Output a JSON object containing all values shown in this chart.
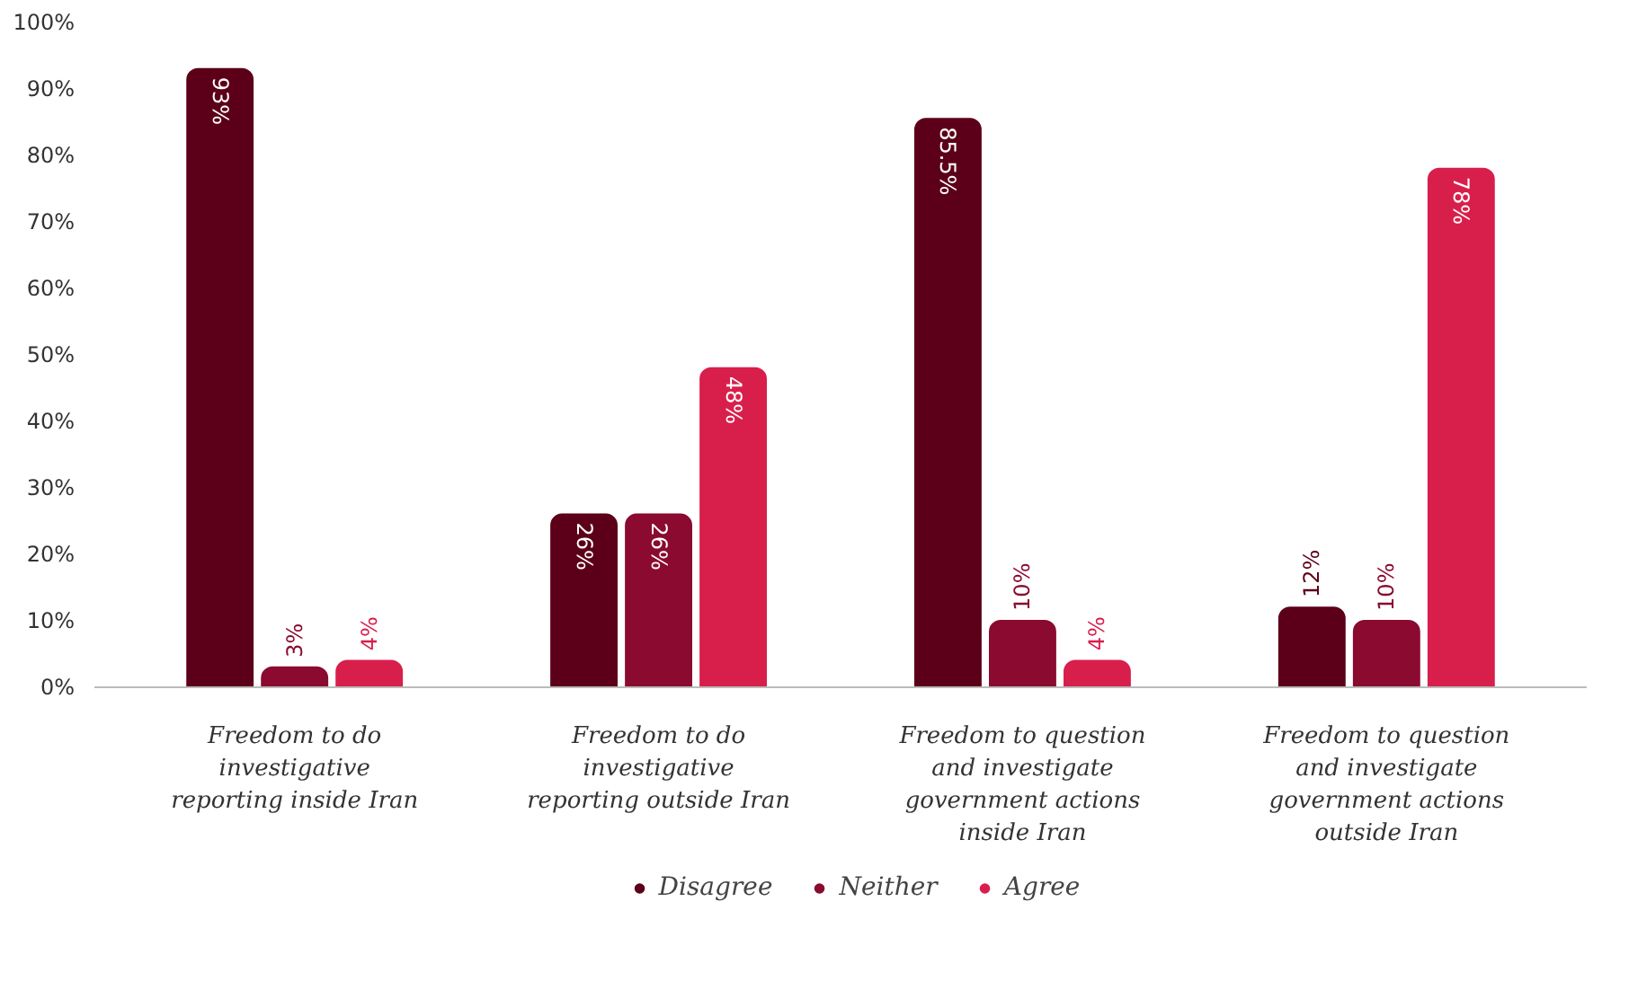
{
  "chart_data": {
    "type": "bar",
    "categories": [
      "Freedom to do investigative reporting inside Iran",
      "Freedom to do investigative reporting outside Iran",
      "Freedom to question and investigate government actions inside Iran",
      "Freedom to question and investigate government actions outside Iran"
    ],
    "series": [
      {
        "name": "Disagree",
        "color": "#5c0019",
        "values": [
          93,
          26,
          85.5,
          12
        ],
        "value_labels": [
          "93%",
          "26%",
          "85.5%",
          "12%"
        ]
      },
      {
        "name": "Neither",
        "color": "#8a0a30",
        "values": [
          3,
          26,
          10,
          10
        ],
        "value_labels": [
          "3%",
          "26%",
          "10%",
          "10%"
        ]
      },
      {
        "name": "Agree",
        "color": "#d81f4c",
        "values": [
          4,
          48,
          4,
          78
        ],
        "value_labels": [
          "4%",
          "48%",
          "4%",
          "78%"
        ]
      }
    ],
    "ylim": [
      0,
      100
    ],
    "yticks": [
      {
        "value": 0,
        "label": "0%"
      },
      {
        "value": 10,
        "label": "10%"
      },
      {
        "value": 20,
        "label": "20%"
      },
      {
        "value": 30,
        "label": "30%"
      },
      {
        "value": 40,
        "label": "40%"
      },
      {
        "value": 50,
        "label": "50%"
      },
      {
        "value": 60,
        "label": "60%"
      },
      {
        "value": 70,
        "label": "70%"
      },
      {
        "value": 80,
        "label": "80%"
      },
      {
        "value": 90,
        "label": "90%"
      },
      {
        "value": 100,
        "label": "100%"
      }
    ],
    "grid": false,
    "legend": "bottom"
  }
}
